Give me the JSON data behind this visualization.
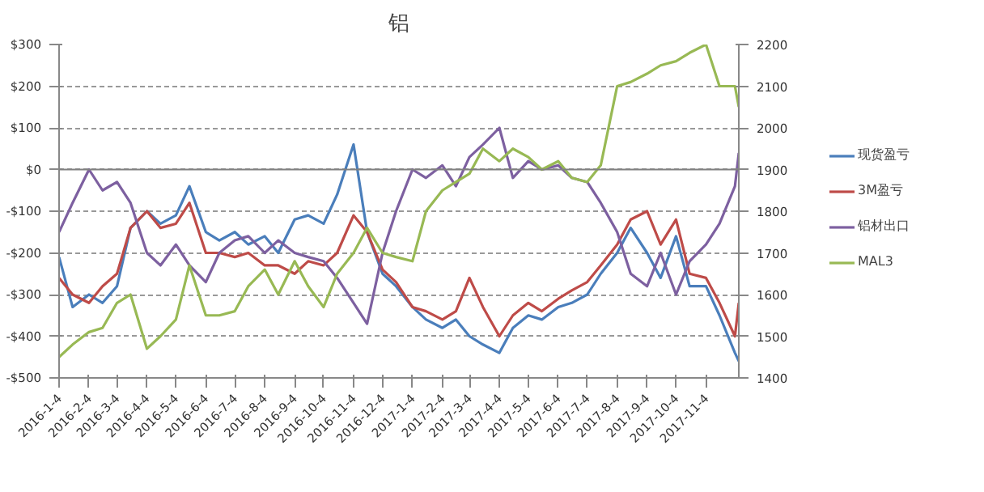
{
  "chart_data": {
    "type": "line",
    "title": "铝",
    "x": [
      "2016-01-04",
      "2016-01-18",
      "2016-02-04",
      "2016-02-18",
      "2016-03-04",
      "2016-03-18",
      "2016-04-04",
      "2016-04-18",
      "2016-05-04",
      "2016-05-18",
      "2016-06-04",
      "2016-06-18",
      "2016-07-04",
      "2016-07-18",
      "2016-08-04",
      "2016-08-18",
      "2016-09-04",
      "2016-09-18",
      "2016-10-04",
      "2016-10-18",
      "2016-11-04",
      "2016-11-18",
      "2016-12-04",
      "2016-12-18",
      "2017-01-04",
      "2017-01-18",
      "2017-02-04",
      "2017-02-18",
      "2017-03-04",
      "2017-03-18",
      "2017-04-04",
      "2017-04-18",
      "2017-05-04",
      "2017-05-18",
      "2017-06-04",
      "2017-06-18",
      "2017-07-04",
      "2017-07-18",
      "2017-08-04",
      "2017-08-18",
      "2017-09-04",
      "2017-09-18",
      "2017-10-04",
      "2017-10-18",
      "2017-11-04",
      "2017-11-18",
      "2017-12-04",
      "2017-12-08"
    ],
    "series": [
      {
        "name": "现货盈亏",
        "color": "#4a7ebb",
        "values": [
          -210,
          -330,
          -300,
          -320,
          -280,
          -140,
          -100,
          -130,
          -110,
          -40,
          -150,
          -170,
          -150,
          -180,
          -160,
          -200,
          -120,
          -110,
          -130,
          -60,
          60,
          -150,
          -250,
          -280,
          -330,
          -360,
          -380,
          -360,
          -400,
          -420,
          -440,
          -380,
          -350,
          -360,
          -330,
          -320,
          -300,
          -250,
          -200,
          -140,
          -200,
          -260,
          -160,
          -280,
          -280,
          -350,
          -440,
          -460
        ]
      },
      {
        "name": "3M盈亏",
        "color": "#be4b48",
        "values": [
          -260,
          -300,
          -320,
          -280,
          -250,
          -140,
          -100,
          -140,
          -130,
          -80,
          -200,
          -200,
          -210,
          -200,
          -230,
          -230,
          -250,
          -220,
          -230,
          -200,
          -110,
          -150,
          -240,
          -270,
          -330,
          -340,
          -360,
          -340,
          -260,
          -330,
          -400,
          -350,
          -320,
          -340,
          -310,
          -290,
          -270,
          -230,
          -180,
          -120,
          -100,
          -180,
          -120,
          -250,
          -260,
          -320,
          -400,
          -320
        ]
      },
      {
        "name": "铝材出口",
        "color": "#7d60a0",
        "values": [
          -150,
          -80,
          0,
          -50,
          -30,
          -80,
          -200,
          -230,
          -180,
          -230,
          -270,
          -200,
          -170,
          -160,
          -200,
          -170,
          -200,
          -210,
          -220,
          -260,
          -320,
          -370,
          -200,
          -100,
          0,
          -20,
          10,
          -40,
          30,
          60,
          100,
          -20,
          20,
          0,
          10,
          -20,
          -30,
          -80,
          -150,
          -250,
          -280,
          -200,
          -300,
          -220,
          -180,
          -130,
          -40,
          40
        ]
      },
      {
        "name": "MAL3",
        "color": "#98b954",
        "axis": "y2",
        "values": [
          1450,
          1480,
          1510,
          1520,
          1580,
          1600,
          1470,
          1500,
          1540,
          1670,
          1550,
          1550,
          1560,
          1620,
          1660,
          1600,
          1680,
          1620,
          1570,
          1650,
          1700,
          1760,
          1700,
          1690,
          1680,
          1800,
          1850,
          1870,
          1890,
          1950,
          1920,
          1950,
          1930,
          1900,
          1920,
          1880,
          1870,
          1910,
          2100,
          2110,
          2130,
          2150,
          2160,
          2180,
          2200,
          2100,
          2100,
          2050
        ]
      }
    ],
    "xlim": [
      "2016-01-04",
      "2017-12-08"
    ],
    "xticks": [
      {
        "value": "2016-01-04",
        "label": "2016-1-4"
      },
      {
        "value": "2016-02-04",
        "label": "2016-2-4"
      },
      {
        "value": "2016-03-04",
        "label": "2016-3-4"
      },
      {
        "value": "2016-04-04",
        "label": "2016-4-4"
      },
      {
        "value": "2016-05-04",
        "label": "2016-5-4"
      },
      {
        "value": "2016-06-04",
        "label": "2016-6-4"
      },
      {
        "value": "2016-07-04",
        "label": "2016-7-4"
      },
      {
        "value": "2016-08-04",
        "label": "2016-8-4"
      },
      {
        "value": "2016-09-04",
        "label": "2016-9-4"
      },
      {
        "value": "2016-10-04",
        "label": "2016-10-4"
      },
      {
        "value": "2016-11-04",
        "label": "2016-11-4"
      },
      {
        "value": "2016-12-04",
        "label": "2016-12-4"
      },
      {
        "value": "2017-01-04",
        "label": "2017-1-4"
      },
      {
        "value": "2017-02-04",
        "label": "2017-2-4"
      },
      {
        "value": "2017-03-04",
        "label": "2017-3-4"
      },
      {
        "value": "2017-04-04",
        "label": "2017-4-4"
      },
      {
        "value": "2017-05-04",
        "label": "2017-5-4"
      },
      {
        "value": "2017-06-04",
        "label": "2017-6-4"
      },
      {
        "value": "2017-07-04",
        "label": "2017-7-4"
      },
      {
        "value": "2017-08-04",
        "label": "2017-8-4"
      },
      {
        "value": "2017-09-04",
        "label": "2017-9-4"
      },
      {
        "value": "2017-10-04",
        "label": "2017-10-4"
      },
      {
        "value": "2017-11-04",
        "label": "2017-11-4"
      }
    ],
    "ylim": [
      -500,
      300
    ],
    "yticks": [
      {
        "value": 300,
        "label": "$300"
      },
      {
        "value": 200,
        "label": "$200"
      },
      {
        "value": 100,
        "label": "$100"
      },
      {
        "value": 0,
        "label": "$0"
      },
      {
        "value": -100,
        "label": "-$100"
      },
      {
        "value": -200,
        "label": "-$200"
      },
      {
        "value": -300,
        "label": "-$300"
      },
      {
        "value": -400,
        "label": "-$400"
      },
      {
        "value": -500,
        "label": "-$500"
      }
    ],
    "y2lim": [
      1400,
      2200
    ],
    "y2ticks": [
      1400,
      1500,
      1600,
      1700,
      1800,
      1900,
      2000,
      2100,
      2200
    ],
    "ref_lines": [
      {
        "axis": "y",
        "value": 0,
        "color": "#808080"
      }
    ],
    "grid": "y",
    "legend": "right",
    "line_style": "solid",
    "marker": "none"
  }
}
